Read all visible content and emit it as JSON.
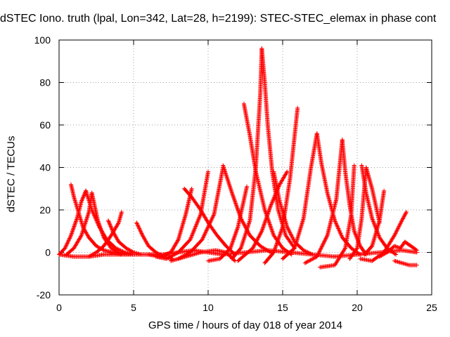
{
  "chart_data": {
    "type": "scatter",
    "title": "dSTEC Iono. truth (lpal, Lon=342, Lat=28, h=2199): STEC-STEC_elemax in phase cont",
    "xlabel": "GPS time / hours of day 018 of year 2014",
    "ylabel": "dSTEC  / TECUs",
    "xlim": [
      0,
      25
    ],
    "ylim": [
      -20,
      100
    ],
    "xticks": [
      0,
      5,
      10,
      15,
      20,
      25
    ],
    "yticks": [
      -20,
      0,
      20,
      40,
      60,
      80,
      100
    ],
    "grid": true,
    "marker": "+",
    "color": "#ff0000",
    "series": [
      {
        "x": [
          0.8,
          1.0,
          1.3,
          1.6,
          2.0,
          2.5,
          3.0,
          3.6,
          4.2
        ],
        "y": [
          32,
          26,
          19,
          12,
          7,
          3,
          1,
          0,
          -1
        ]
      },
      {
        "x": [
          0.0,
          0.4,
          0.8,
          1.2,
          1.5,
          1.8
        ],
        "y": [
          -1,
          2,
          8,
          16,
          24,
          29
        ]
      },
      {
        "x": [
          1.8,
          2.2,
          2.7,
          3.2,
          3.8,
          4.4,
          5.0
        ],
        "y": [
          29,
          20,
          12,
          6,
          2,
          0,
          -1
        ]
      },
      {
        "x": [
          0.5,
          1.0,
          1.5,
          2.0,
          2.2
        ],
        "y": [
          -1,
          2,
          8,
          19,
          28
        ]
      },
      {
        "x": [
          2.2,
          2.6,
          3.0,
          3.5,
          4.0,
          4.5,
          5.0
        ],
        "y": [
          28,
          15,
          7,
          2,
          0,
          -1,
          -1
        ]
      },
      {
        "x": [
          2.0,
          2.5,
          3.0,
          3.5,
          4.0,
          4.2
        ],
        "y": [
          -2,
          0,
          3,
          8,
          14,
          19
        ]
      },
      {
        "x": [
          3.3,
          3.6,
          4.0,
          4.5,
          5.0,
          5.5
        ],
        "y": [
          15,
          10,
          5,
          2,
          0,
          -1
        ]
      },
      {
        "x": [
          5.2,
          5.6,
          6.0,
          6.5,
          7.0,
          7.6
        ],
        "y": [
          14,
          8,
          3,
          0,
          -2,
          -3
        ]
      },
      {
        "x": [
          6.0,
          6.8,
          7.5,
          8.0,
          8.5,
          8.9
        ],
        "y": [
          -1,
          -2,
          0,
          6,
          18,
          30
        ]
      },
      {
        "x": [
          6.5,
          7.2,
          8.0,
          8.8,
          9.5,
          10.0
        ],
        "y": [
          -2,
          -3,
          0,
          6,
          18,
          38
        ]
      },
      {
        "x": [
          8.4,
          8.9,
          9.5,
          10.0,
          10.6,
          11.2,
          11.8
        ],
        "y": [
          30,
          26,
          20,
          14,
          8,
          3,
          -1
        ]
      },
      {
        "x": [
          8.0,
          8.8,
          9.6,
          10.4,
          11.0
        ],
        "y": [
          -3,
          0,
          6,
          18,
          40
        ]
      },
      {
        "x": [
          7.5,
          8.5,
          9.5,
          10.5,
          11.2,
          11.8
        ],
        "y": [
          -4,
          -2,
          0,
          1,
          0,
          -4
        ]
      },
      {
        "x": [
          11.0,
          11.6,
          12.2,
          12.8,
          13.5,
          14.2
        ],
        "y": [
          41,
          28,
          16,
          8,
          3,
          0
        ]
      },
      {
        "x": [
          10.0,
          10.8,
          11.5,
          12.0,
          12.6
        ],
        "y": [
          -4,
          -3,
          2,
          12,
          31
        ]
      },
      {
        "x": [
          12.4,
          12.8,
          13.2,
          13.8,
          14.4,
          15.0,
          15.6
        ],
        "y": [
          70,
          55,
          38,
          20,
          8,
          2,
          -1
        ]
      },
      {
        "x": [
          11.6,
          12.2,
          12.8,
          13.2,
          13.5,
          13.6
        ],
        "y": [
          -3,
          2,
          15,
          40,
          75,
          96
        ]
      },
      {
        "x": [
          13.6,
          13.8,
          14.0,
          14.3,
          14.7,
          15.2,
          15.8
        ],
        "y": [
          96,
          80,
          60,
          38,
          20,
          8,
          2
        ]
      },
      {
        "x": [
          12.0,
          13.0,
          13.6,
          14.2,
          14.8,
          15.3
        ],
        "y": [
          -4,
          2,
          10,
          22,
          32,
          38
        ]
      },
      {
        "x": [
          14.4,
          14.8,
          15.3,
          15.8,
          16.4,
          17.0
        ],
        "y": [
          38,
          24,
          12,
          5,
          1,
          -1
        ]
      },
      {
        "x": [
          13.8,
          14.4,
          15.0,
          15.5,
          16.0
        ],
        "y": [
          -5,
          0,
          12,
          35,
          68
        ]
      },
      {
        "x": [
          15.0,
          15.8,
          16.4,
          16.9,
          17.3
        ],
        "y": [
          -3,
          2,
          16,
          40,
          56
        ]
      },
      {
        "x": [
          17.3,
          17.6,
          18.0,
          18.5,
          19.0,
          19.6,
          20.2
        ],
        "y": [
          56,
          42,
          28,
          15,
          7,
          2,
          -1
        ]
      },
      {
        "x": [
          16.5,
          17.3,
          18.0,
          18.6,
          19.0
        ],
        "y": [
          -5,
          -2,
          8,
          25,
          53
        ]
      },
      {
        "x": [
          19.0,
          19.2,
          19.5,
          19.8,
          20.2,
          20.6
        ],
        "y": [
          53,
          38,
          22,
          10,
          3,
          -1
        ]
      },
      {
        "x": [
          17.5,
          18.5,
          19.2,
          19.6,
          19.8
        ],
        "y": [
          -7,
          -6,
          2,
          18,
          41
        ]
      },
      {
        "x": [
          19.5,
          20.0,
          20.3,
          20.6,
          21.0,
          21.5
        ],
        "y": [
          -3,
          2,
          16,
          40,
          30,
          14
        ]
      },
      {
        "x": [
          20.3,
          20.6,
          21.0,
          21.5,
          22.0,
          22.6
        ],
        "y": [
          41,
          28,
          16,
          7,
          2,
          -1
        ]
      },
      {
        "x": [
          20.5,
          21.0,
          21.5,
          21.8
        ],
        "y": [
          -1,
          3,
          15,
          29
        ]
      },
      {
        "x": [
          21.5,
          22.0,
          22.5,
          22.9,
          23.2,
          23.6,
          24.0
        ],
        "y": [
          -2,
          0,
          3,
          2,
          5,
          3,
          1
        ]
      },
      {
        "x": [
          20.2,
          21.0,
          21.8,
          22.5,
          23.0,
          23.3
        ],
        "y": [
          -3,
          -4,
          0,
          8,
          15,
          19
        ]
      },
      {
        "x": [
          22.5,
          23.0,
          23.5,
          24.0
        ],
        "y": [
          -4,
          -5,
          -6,
          -6
        ]
      },
      {
        "x": [
          0.0,
          1.0,
          2.0,
          3.0,
          4.0,
          5.0,
          6.0
        ],
        "y": [
          -1,
          -2,
          -2,
          -1,
          -1,
          -1,
          -1
        ]
      },
      {
        "x": [
          6.0,
          7.0,
          8.0,
          9.0,
          10.0,
          11.0
        ],
        "y": [
          -1,
          -1,
          0,
          1,
          0,
          -1
        ]
      },
      {
        "x": [
          11.0,
          12.5,
          14.0,
          15.5,
          17.0,
          18.5
        ],
        "y": [
          -1,
          0,
          1,
          0,
          -1,
          -2
        ]
      },
      {
        "x": [
          18.5,
          20.0,
          21.5,
          23.0,
          24.0
        ],
        "y": [
          -2,
          -1,
          0,
          1,
          0
        ]
      }
    ]
  }
}
